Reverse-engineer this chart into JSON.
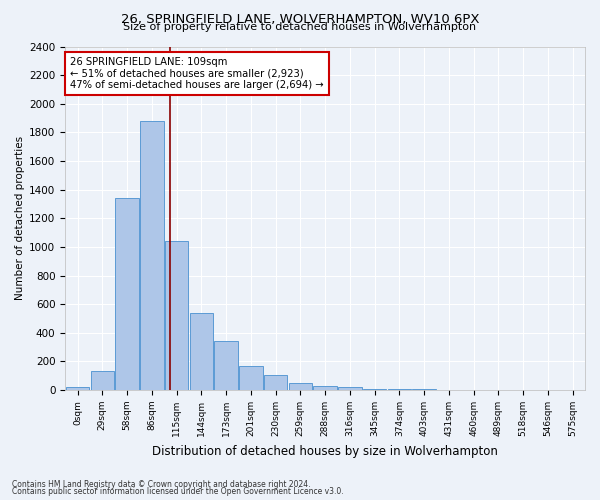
{
  "title": "26, SPRINGFIELD LANE, WOLVERHAMPTON, WV10 6PX",
  "subtitle": "Size of property relative to detached houses in Wolverhampton",
  "xlabel": "Distribution of detached houses by size in Wolverhampton",
  "ylabel": "Number of detached properties",
  "bar_labels": [
    "0sqm",
    "29sqm",
    "58sqm",
    "86sqm",
    "115sqm",
    "144sqm",
    "173sqm",
    "201sqm",
    "230sqm",
    "259sqm",
    "288sqm",
    "316sqm",
    "345sqm",
    "374sqm",
    "403sqm",
    "431sqm",
    "460sqm",
    "489sqm",
    "518sqm",
    "546sqm",
    "575sqm"
  ],
  "bar_values": [
    20,
    130,
    1340,
    1880,
    1040,
    540,
    340,
    165,
    105,
    50,
    30,
    20,
    10,
    5,
    5,
    3,
    3,
    3,
    3,
    3,
    3
  ],
  "bar_color": "#aec6e8",
  "bar_edge_color": "#5b9bd5",
  "vline_color": "#8b0000",
  "vline_x": 3.72,
  "ylim_max": 2400,
  "yticks": [
    0,
    200,
    400,
    600,
    800,
    1000,
    1200,
    1400,
    1600,
    1800,
    2000,
    2200,
    2400
  ],
  "annotation_line1": "26 SPRINGFIELD LANE: 109sqm",
  "annotation_line2": "← 51% of detached houses are smaller (2,923)",
  "annotation_line3": "47% of semi-detached houses are larger (2,694) →",
  "annotation_box_color": "#ffffff",
  "annotation_box_edge": "#cc0000",
  "footnote1": "Contains HM Land Registry data © Crown copyright and database right 2024.",
  "footnote2": "Contains public sector information licensed under the Open Government Licence v3.0.",
  "background_color": "#edf2f9",
  "grid_color": "#ffffff"
}
